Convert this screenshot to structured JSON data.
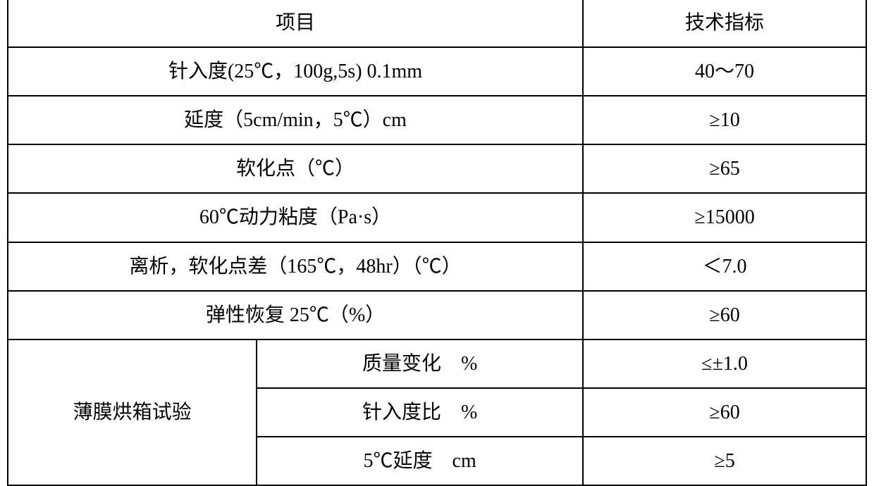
{
  "table": {
    "border_color": "#000000",
    "background_color": "#ffffff",
    "font_size": 28,
    "header": {
      "col1": "项目",
      "col2": "技术指标"
    },
    "rows": [
      {
        "param": "针入度(25℃，100g,5s) 0.1mm",
        "value": "40～70"
      },
      {
        "param": "延度（5cm/min，5℃）cm",
        "value": "≥10"
      },
      {
        "param": "软化点（℃）",
        "value": "≥65"
      },
      {
        "param": "60℃动力粘度（Pa·s）",
        "value": "≥15000"
      },
      {
        "param": "离析，软化点差（165℃，48hr）（℃）",
        "value": "＜7.0"
      },
      {
        "param": "弹性恢复 25℃（%）",
        "value": "≥60"
      }
    ],
    "group": {
      "label": "薄膜烘箱试验",
      "items": [
        {
          "param": "质量变化　%",
          "value": "≤±1.0"
        },
        {
          "param": "针入度比　%",
          "value": "≥60"
        },
        {
          "param": "5℃延度　cm",
          "value": "≥5"
        }
      ]
    }
  }
}
